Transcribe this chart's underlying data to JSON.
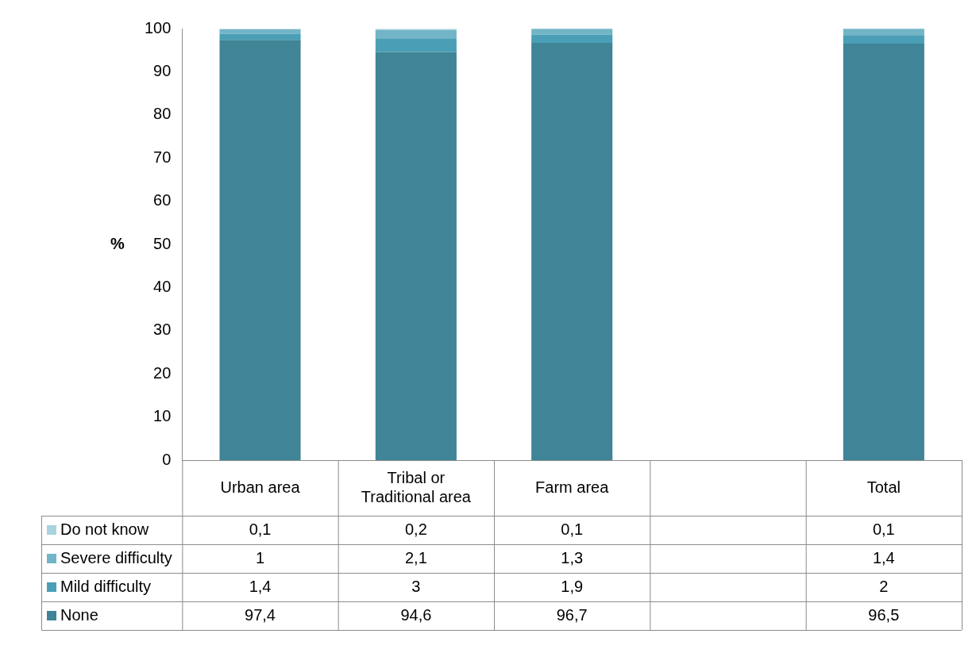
{
  "chart_data": {
    "type": "bar",
    "stacked": true,
    "ylabel": "%",
    "categories": [
      "Urban area",
      "Tribal or Traditional area",
      "Farm area",
      null,
      "Total"
    ],
    "ylim": [
      0,
      100
    ],
    "yticks": [
      0,
      10,
      20,
      30,
      40,
      50,
      60,
      70,
      80,
      90,
      100
    ],
    "grid": false,
    "legend": "bottom",
    "series": [
      {
        "name": "None",
        "color": "#3f8497",
        "values": [
          97.4,
          94.6,
          96.7,
          null,
          96.5
        ],
        "value_labels": [
          "97,4",
          "94,6",
          "96,7",
          null,
          "96,5"
        ]
      },
      {
        "name": "Mild difficulty",
        "color": "#4a9fb6",
        "values": [
          1.4,
          3,
          1.9,
          null,
          2
        ],
        "value_labels": [
          "1,4",
          "3",
          "1,9",
          null,
          "2"
        ]
      },
      {
        "name": "Severe difficulty",
        "color": "#72b5c7",
        "values": [
          1,
          2.1,
          1.3,
          null,
          1.4
        ],
        "value_labels": [
          "1",
          "2,1",
          "1,3",
          null,
          "1,4"
        ]
      },
      {
        "name": "Do not know",
        "color": "#a9d3df",
        "values": [
          0.1,
          0.2,
          0.1,
          null,
          0.1
        ],
        "value_labels": [
          "0,1",
          "0,2",
          "0,1",
          null,
          "0,1"
        ]
      }
    ]
  }
}
